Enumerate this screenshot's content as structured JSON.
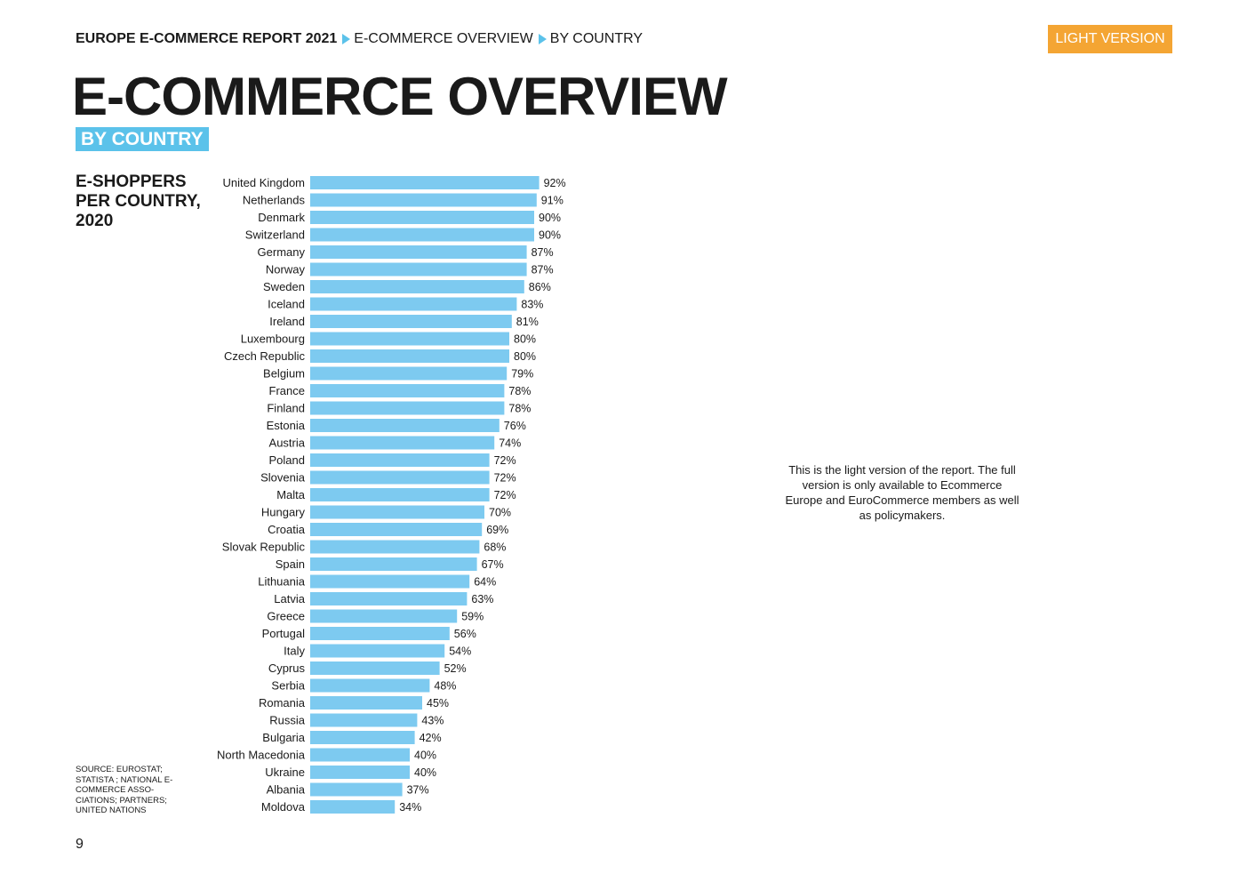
{
  "breadcrumb": {
    "report": "EUROPE E-COMMERCE REPORT 2021",
    "section": "E-COMMERCE OVERVIEW",
    "page": "BY COUNTRY"
  },
  "version_badge": "LIGHT VERSION",
  "page_title": "E-COMMERCE OVERVIEW",
  "subtitle": "BY COUNTRY",
  "chart_heading": "E-SHOPPERS PER COUNTRY, 2020",
  "note": "This is the light version of the report. The full version is only available to Ecommerce Europe and EuroCommerce members as well as policymakers.",
  "source": "SOURCE: EUROSTAT; STATISTA ; NATIONAL E-COMMERCE ASSO-CIATIONS; PARTNERS; UNITED NATIONS",
  "page_number": "9",
  "colors": {
    "bar": "#7dcaf0",
    "accent_blue": "#5bc2ea",
    "accent_orange": "#f4a533",
    "text": "#1a1a1a"
  },
  "chart_data": {
    "type": "bar",
    "orientation": "horizontal",
    "title": "E-SHOPPERS PER COUNTRY, 2020",
    "value_suffix": "%",
    "categories": [
      "United Kingdom",
      "Netherlands",
      "Denmark",
      "Switzerland",
      "Germany",
      "Norway",
      "Sweden",
      "Iceland",
      "Ireland",
      "Luxembourg",
      "Czech Republic",
      "Belgium",
      "France",
      "Finland",
      "Estonia",
      "Austria",
      "Poland",
      "Slovenia",
      "Malta",
      "Hungary",
      "Croatia",
      "Slovak Republic",
      "Spain",
      "Lithuania",
      "Latvia",
      "Greece",
      "Portugal",
      "Italy",
      "Cyprus",
      "Serbia",
      "Romania",
      "Russia",
      "Bulgaria",
      "North Macedonia",
      "Ukraine",
      "Albania",
      "Moldova"
    ],
    "values": [
      92,
      91,
      90,
      90,
      87,
      87,
      86,
      83,
      81,
      80,
      80,
      79,
      78,
      78,
      76,
      74,
      72,
      72,
      72,
      70,
      69,
      68,
      67,
      64,
      63,
      59,
      56,
      54,
      52,
      48,
      45,
      43,
      42,
      40,
      40,
      37,
      34
    ],
    "xlim": [
      0,
      100
    ],
    "grid": false,
    "legend": "none"
  }
}
